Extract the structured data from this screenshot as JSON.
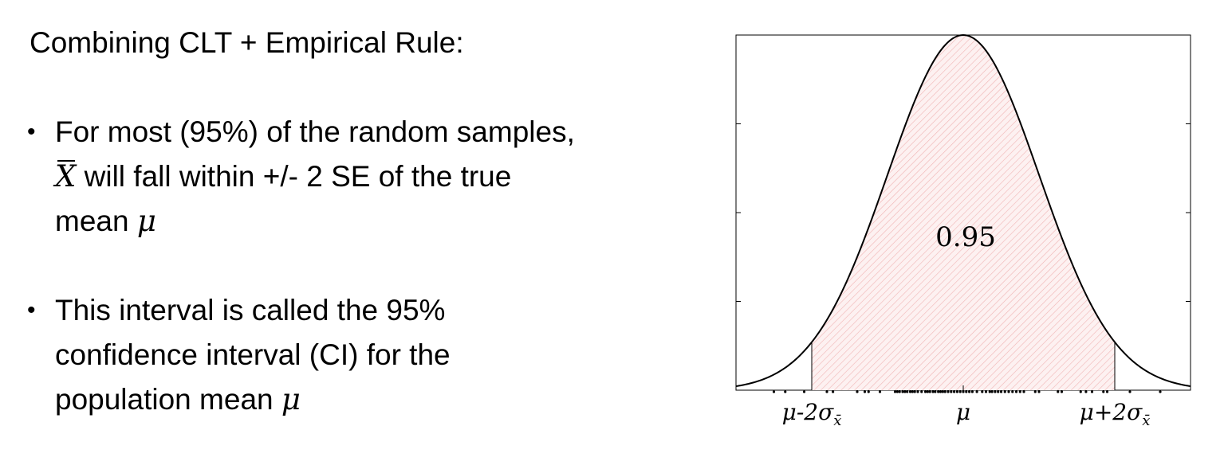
{
  "slide": {
    "title": "Combining CLT + Empirical Rule:",
    "bullet1": {
      "line1": "For most (95%) of the random samples,",
      "symbol_xbar": "X",
      "line2_rest": " will fall within +/- 2 SE of the true",
      "line3_text": "mean ",
      "symbol_mu": "μ"
    },
    "bullet2": {
      "line1": "This interval is called the 95%",
      "line2": "confidence interval (CI) for the",
      "line3_text": "population mean ",
      "symbol_mu": "μ"
    }
  },
  "chart_data": {
    "type": "area",
    "distribution": "normal",
    "mean": 0,
    "sd": 1,
    "xlim": [
      -3,
      3
    ],
    "shaded_interval": [
      -2,
      2
    ],
    "shaded_area_label": "0.95",
    "x_ticks": [
      {
        "value": -2,
        "label_main": "μ-2σ",
        "label_sub": "x̄"
      },
      {
        "value": 0,
        "label_main": "μ",
        "label_sub": ""
      },
      {
        "value": 2,
        "label_main": "μ+2σ",
        "label_sub": "x̄"
      }
    ],
    "sample_points": [
      -2.5,
      -2.35,
      -2.1,
      -1.8,
      -1.72,
      -1.4,
      -1.3,
      -1.25,
      -1.1,
      -0.9,
      -0.87,
      -0.84,
      -0.8,
      -0.77,
      -0.74,
      -0.7,
      -0.67,
      -0.64,
      -0.6,
      -0.55,
      -0.5,
      -0.47,
      -0.44,
      -0.4,
      -0.37,
      -0.33,
      -0.3,
      -0.27,
      -0.24,
      -0.2,
      -0.16,
      -0.12,
      -0.08,
      -0.04,
      0.0,
      0.04,
      0.08,
      0.12,
      0.18,
      0.25,
      0.3,
      0.35,
      0.38,
      0.42,
      0.46,
      0.5,
      0.55,
      0.6,
      0.65,
      0.7,
      0.75,
      0.8,
      0.95,
      1.0,
      1.25,
      1.3,
      1.55,
      1.62,
      1.7,
      1.85,
      1.9,
      2.2,
      2.6
    ],
    "grid": false,
    "colors": {
      "curve": "#000000",
      "shade": "#f2b8b8",
      "axis": "#000000"
    }
  }
}
